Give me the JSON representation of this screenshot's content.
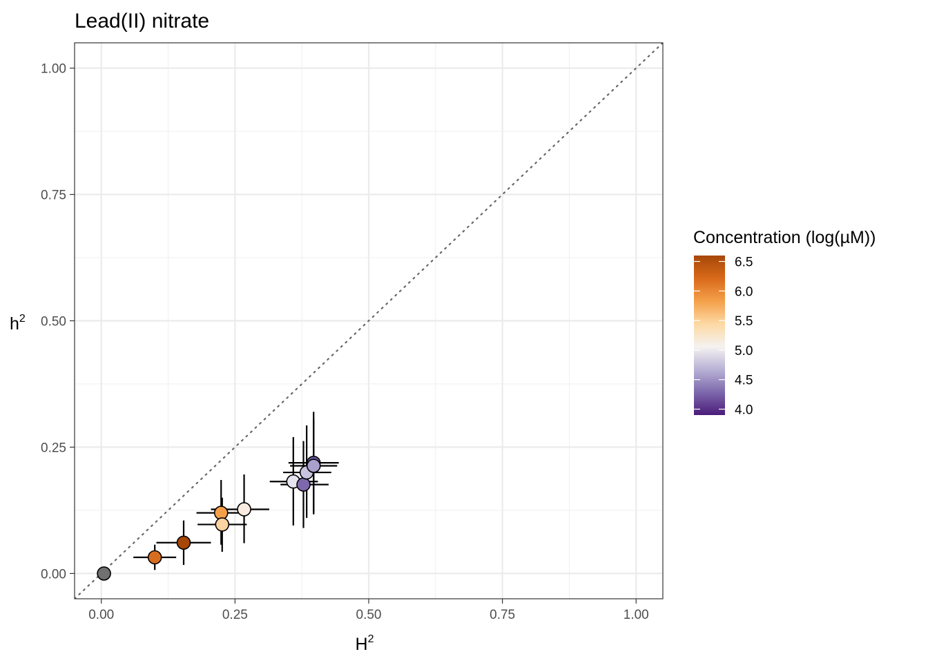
{
  "chart_data": {
    "type": "scatter",
    "title": "Lead(II) nitrate",
    "xlabel": "H",
    "xlabel_sup": "2",
    "ylabel": "h",
    "ylabel_sup": "2",
    "xlim": [
      -0.05,
      1.05
    ],
    "ylim": [
      -0.05,
      1.05
    ],
    "x_ticks": [
      0.0,
      0.25,
      0.5,
      0.75,
      1.0
    ],
    "x_tick_labels": [
      "0.00",
      "0.25",
      "0.50",
      "0.75",
      "1.00"
    ],
    "y_ticks": [
      0.0,
      0.25,
      0.5,
      0.75,
      1.0
    ],
    "y_tick_labels": [
      "0.00",
      "0.25",
      "0.50",
      "0.75",
      "1.00"
    ],
    "grid": true,
    "reference_line": {
      "type": "identity",
      "style": "dotted",
      "color": "#666666"
    },
    "legend": {
      "title": "Concentration (log(µM))",
      "placement": "right",
      "type": "colorbar",
      "range": [
        3.9,
        6.6
      ],
      "ticks": [
        4.0,
        4.5,
        5.0,
        5.5,
        6.0,
        6.5
      ],
      "tick_labels": [
        "4.0",
        "4.5",
        "5.0",
        "5.5",
        "6.0",
        "6.5"
      ],
      "colors": [
        "#4b1c7a",
        "#7d68ac",
        "#b8b2d6",
        "#f5f2f0",
        "#fdd9a4",
        "#f4a04a",
        "#d96a1a",
        "#a64708"
      ]
    },
    "points": [
      {
        "x": 0.005,
        "y": 0.0,
        "x_err": [
          0.005,
          0.005
        ],
        "y_err": [
          0.0,
          0.0
        ],
        "color": "#707070"
      },
      {
        "x": 0.1,
        "y": 0.032,
        "x_err": [
          0.06,
          0.14
        ],
        "y_err": [
          0.007,
          0.057
        ],
        "color": "#d96d1f"
      },
      {
        "x": 0.154,
        "y": 0.061,
        "x_err": [
          0.103,
          0.205
        ],
        "y_err": [
          0.017,
          0.105
        ],
        "color": "#a64708"
      },
      {
        "x": 0.224,
        "y": 0.12,
        "x_err": [
          0.178,
          0.268
        ],
        "y_err": [
          0.057,
          0.185
        ],
        "color": "#f4a04a"
      },
      {
        "x": 0.226,
        "y": 0.097,
        "x_err": [
          0.18,
          0.272
        ],
        "y_err": [
          0.043,
          0.15
        ],
        "color": "#fdd3a2"
      },
      {
        "x": 0.267,
        "y": 0.127,
        "x_err": [
          0.205,
          0.314
        ],
        "y_err": [
          0.06,
          0.196
        ],
        "color": "#faece0"
      },
      {
        "x": 0.359,
        "y": 0.182,
        "x_err": [
          0.315,
          0.405
        ],
        "y_err": [
          0.095,
          0.27
        ],
        "color": "#e6e4ef"
      },
      {
        "x": 0.378,
        "y": 0.176,
        "x_err": [
          0.335,
          0.425
        ],
        "y_err": [
          0.09,
          0.262
        ],
        "color": "#7e68ac"
      },
      {
        "x": 0.384,
        "y": 0.2,
        "x_err": [
          0.34,
          0.43
        ],
        "y_err": [
          0.11,
          0.293
        ],
        "color": "#c9c5e0"
      },
      {
        "x": 0.397,
        "y": 0.219,
        "x_err": [
          0.35,
          0.444
        ],
        "y_err": [
          0.117,
          0.32
        ],
        "color": "#6a55a0"
      },
      {
        "x": 0.397,
        "y": 0.213,
        "x_err": [
          0.353,
          0.441
        ],
        "y_err": [
          0.12,
          0.306
        ],
        "color": "#a9a1cc"
      }
    ]
  }
}
